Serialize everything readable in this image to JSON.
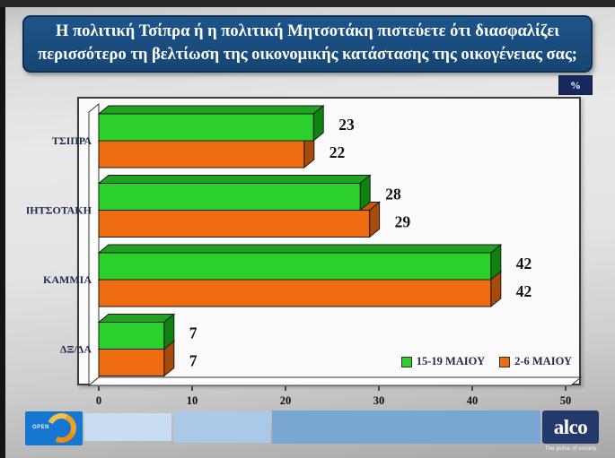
{
  "header": {
    "question_line1": "Η πολιτική Τσίπρα ή η πολιτική Μητσοτάκη πιστεύετε ότι διασφαλίζει",
    "question_line2": "περισσότερο τη βελτίωση της οικονομικής κατάστασης της οικογένειας σας;",
    "unit_badge": "%"
  },
  "chart_data": {
    "type": "bar",
    "orientation": "horizontal",
    "bar_style": "3d",
    "categories": [
      "ΤΣΙΠΡΑ",
      "ΜΗΤΣΟΤΑΚΗ",
      "ΚΑΜΜΙΑ",
      "ΔΞ/ΔΑ"
    ],
    "series": [
      {
        "name": "15-19 ΜΑΙΟΥ",
        "color": "#2bd02b",
        "values": [
          23,
          28,
          42,
          7
        ]
      },
      {
        "name": "2-6 ΜΑΙΟΥ",
        "color": "#f06c10",
        "values": [
          22,
          29,
          42,
          7
        ]
      }
    ],
    "xlim": [
      0,
      50
    ],
    "xticks": [
      0,
      10,
      20,
      30,
      40,
      50
    ],
    "legend_position": "bottom-right",
    "grid": false
  },
  "colors": {
    "series1_front": "#2bd02b",
    "series1_top": "#1fa220",
    "series1_side": "#0f8310",
    "series2_front": "#f06c10",
    "series2_top": "#c45a0e",
    "series2_side": "#a84a0a",
    "value_label": "#111111",
    "category_label": "#1e2a4e",
    "axis": "#333333"
  },
  "footer": {
    "open_logo": "OPEN",
    "alco_logo": "alco",
    "alco_tagline": "The pulse of society"
  }
}
